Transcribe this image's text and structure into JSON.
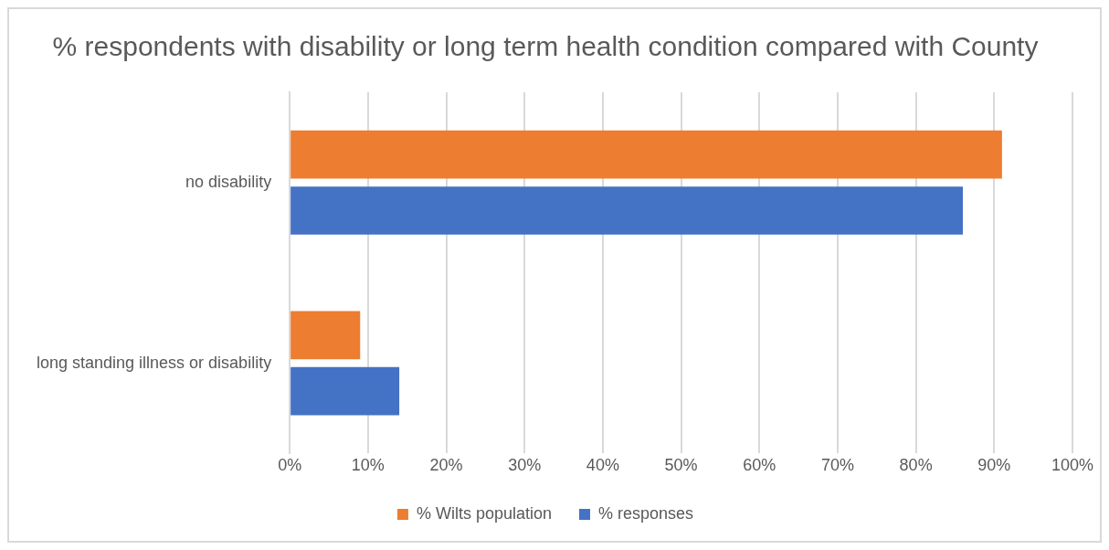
{
  "chart_data": {
    "type": "bar",
    "orientation": "horizontal",
    "title": "% respondents with disability or long term health condition compared with County",
    "categories": [
      "no disability",
      "long standing illness or disability"
    ],
    "series": [
      {
        "name": "% Wilts population",
        "color": "#ed7d31",
        "values": [
          91,
          9
        ]
      },
      {
        "name": "% responses",
        "color": "#4472c4",
        "values": [
          86,
          14
        ]
      }
    ],
    "xlim": [
      0,
      100
    ],
    "xticks": [
      {
        "value": 0,
        "label": "0%"
      },
      {
        "value": 10,
        "label": "10%"
      },
      {
        "value": 20,
        "label": "20%"
      },
      {
        "value": 30,
        "label": "30%"
      },
      {
        "value": 40,
        "label": "40%"
      },
      {
        "value": 50,
        "label": "50%"
      },
      {
        "value": 60,
        "label": "60%"
      },
      {
        "value": 70,
        "label": "70%"
      },
      {
        "value": 80,
        "label": "80%"
      },
      {
        "value": 90,
        "label": "90%"
      },
      {
        "value": 100,
        "label": "100%"
      }
    ],
    "grid": "x",
    "legend": "bottom"
  }
}
